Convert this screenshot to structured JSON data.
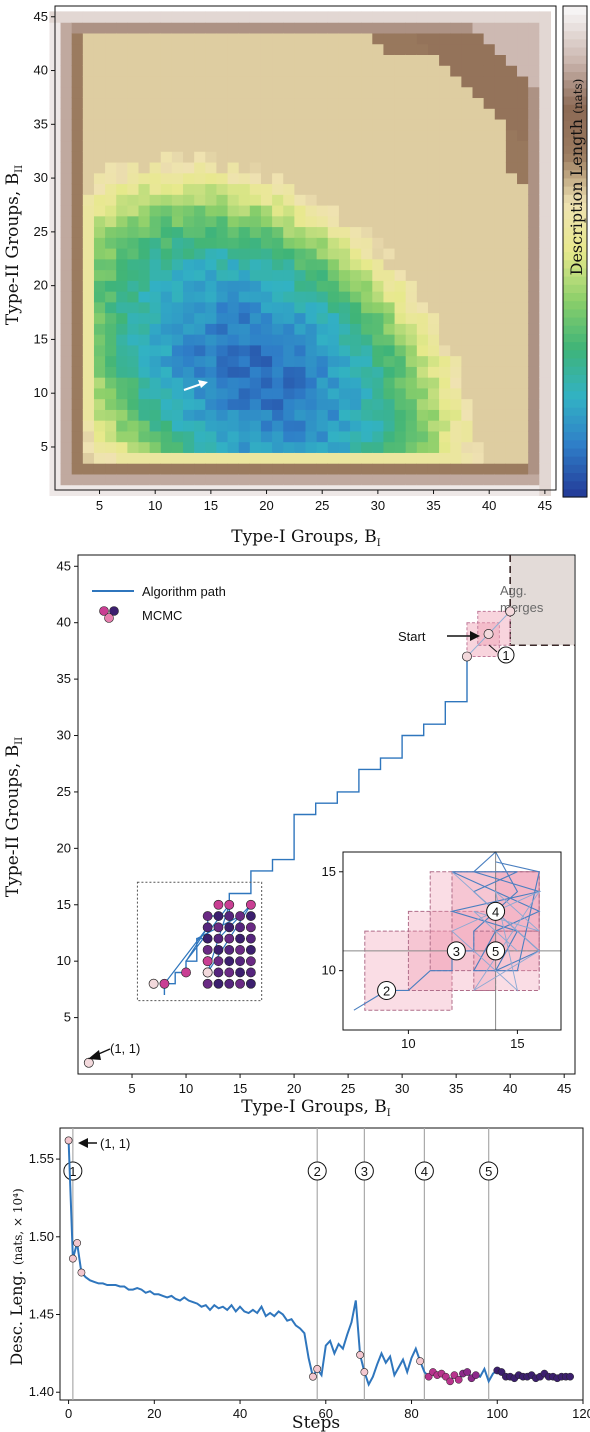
{
  "chart_data": [
    {
      "type": "heatmap",
      "xlabel": "Type-I Groups, B",
      "xlabel_sub": "I",
      "ylabel": "Type-II Groups, B",
      "ylabel_sub": "II",
      "xlim": [
        1,
        46
      ],
      "ylim": [
        1,
        46
      ],
      "xticks": [
        5,
        10,
        15,
        20,
        25,
        30,
        35,
        40,
        45
      ],
      "yticks": [
        5,
        10,
        15,
        20,
        25,
        30,
        35,
        40,
        45
      ],
      "colorbar_label": "Description Length",
      "colorbar_unit": "(nats)",
      "minimum_marker": {
        "x": 14,
        "y": 11
      },
      "colormap": [
        "#243e9a",
        "#2f7ec8",
        "#32b2c4",
        "#3fb478",
        "#8ccf6a",
        "#e7e98c",
        "#efe2b2",
        "#9b7b5f",
        "#8c6a55",
        "#cdb9b2",
        "#f6f4f4"
      ]
    },
    {
      "type": "line",
      "xlabel": "Type-I Groups, B",
      "xlabel_sub": "I",
      "ylabel": "Type-II Groups, B",
      "ylabel_sub": "II",
      "xlim": [
        0,
        46
      ],
      "ylim": [
        0,
        46
      ],
      "xticks": [
        5,
        10,
        15,
        20,
        25,
        30,
        35,
        40,
        45
      ],
      "yticks": [
        5,
        10,
        15,
        20,
        25,
        30,
        35,
        40,
        45
      ],
      "legend": {
        "path_label": "Algorithm path",
        "mcmc_label": "MCMC",
        "placement": "top-left"
      },
      "agg_region_label": "Agg.\nmerges",
      "agg_line1": "Agg.",
      "agg_line2": "merges",
      "start_label": "Start",
      "origin_label": "(1, 1)",
      "path": [
        [
          36,
          37
        ],
        [
          36,
          33
        ],
        [
          34,
          33
        ],
        [
          34,
          31
        ],
        [
          32,
          31
        ],
        [
          32,
          30
        ],
        [
          30,
          30
        ],
        [
          30,
          28
        ],
        [
          28,
          28
        ],
        [
          28,
          27
        ],
        [
          26,
          27
        ],
        [
          26,
          25
        ],
        [
          24,
          25
        ],
        [
          24,
          24
        ],
        [
          22,
          24
        ],
        [
          22,
          23
        ],
        [
          20,
          23
        ],
        [
          20,
          19
        ],
        [
          18,
          19
        ],
        [
          18,
          18
        ],
        [
          16,
          18
        ],
        [
          16,
          16
        ],
        [
          14,
          16
        ],
        [
          14,
          14
        ],
        [
          12,
          14
        ],
        [
          12,
          12
        ],
        [
          11,
          12
        ],
        [
          11,
          10
        ],
        [
          10,
          10
        ],
        [
          10,
          9
        ],
        [
          9,
          9
        ],
        [
          9,
          8
        ],
        [
          8,
          8
        ],
        [
          8,
          7
        ]
      ],
      "path_points": [
        [
          1,
          1
        ],
        [
          36,
          37
        ],
        [
          38,
          39
        ],
        [
          40,
          41
        ],
        [
          16,
          15
        ],
        [
          15,
          15
        ],
        [
          14,
          15
        ],
        [
          13,
          15
        ],
        [
          12,
          9
        ],
        [
          10,
          9
        ],
        [
          8,
          8
        ],
        [
          7,
          8
        ]
      ],
      "mcmc_grid": {
        "x_from": 12,
        "x_to": 16,
        "y_from": 8,
        "y_to": 14
      },
      "inset": {
        "xlim": [
          7,
          17
        ],
        "ylim": [
          7,
          16
        ],
        "xticks": [
          10,
          15
        ],
        "yticks": [
          10,
          15
        ],
        "ref_x": 14,
        "ref_y": 11
      },
      "step_markers": [
        "1",
        "2",
        "3",
        "4",
        "5"
      ]
    },
    {
      "type": "line",
      "xlabel": "Steps",
      "ylabel": "Desc. Leng.",
      "yunit": "(nats, × 10⁴)",
      "xlim": [
        -2,
        120
      ],
      "ylim": [
        1.395,
        1.57
      ],
      "xticks": [
        0,
        20,
        40,
        60,
        80,
        100,
        120
      ],
      "yticks": [
        1.4,
        1.45,
        1.5,
        1.55
      ],
      "ytick_labels": [
        "1.40",
        "1.45",
        "1.50",
        "1.55"
      ],
      "start_label": "(1, 1)",
      "vlines": [
        {
          "x": 1,
          "label": "1"
        },
        {
          "x": 58,
          "label": "2"
        },
        {
          "x": 69,
          "label": "3"
        },
        {
          "x": 83,
          "label": "4"
        },
        {
          "x": 98,
          "label": "5"
        }
      ],
      "x": [
        0,
        1,
        2,
        3,
        4,
        5,
        6,
        7,
        8,
        9,
        10,
        11,
        12,
        13,
        14,
        15,
        16,
        17,
        18,
        19,
        20,
        21,
        22,
        23,
        24,
        25,
        26,
        27,
        28,
        29,
        30,
        31,
        32,
        33,
        34,
        35,
        36,
        37,
        38,
        39,
        40,
        41,
        42,
        43,
        44,
        45,
        46,
        47,
        48,
        49,
        50,
        51,
        52,
        53,
        54,
        55,
        56,
        57,
        58,
        59,
        60,
        61,
        62,
        63,
        64,
        65,
        66,
        67,
        68,
        69,
        70,
        71,
        72,
        73,
        74,
        75,
        76,
        77,
        78,
        79,
        80,
        81,
        82,
        83,
        84,
        85,
        86,
        87,
        88,
        89,
        90,
        91,
        92,
        93,
        94,
        95,
        96,
        97,
        98,
        99,
        100,
        101,
        102,
        103,
        104,
        105,
        106,
        107,
        108,
        109,
        110,
        111,
        112,
        113,
        114,
        115,
        116,
        117
      ],
      "y": [
        1.562,
        1.486,
        1.496,
        1.477,
        1.474,
        1.472,
        1.471,
        1.47,
        1.47,
        1.469,
        1.469,
        1.469,
        1.468,
        1.468,
        1.466,
        1.466,
        1.467,
        1.466,
        1.464,
        1.465,
        1.463,
        1.463,
        1.462,
        1.461,
        1.462,
        1.46,
        1.459,
        1.461,
        1.459,
        1.458,
        1.457,
        1.455,
        1.456,
        1.453,
        1.456,
        1.454,
        1.455,
        1.453,
        1.456,
        1.452,
        1.455,
        1.452,
        1.451,
        1.453,
        1.451,
        1.455,
        1.449,
        1.451,
        1.449,
        1.452,
        1.45,
        1.446,
        1.447,
        1.443,
        1.441,
        1.438,
        1.422,
        1.41,
        1.415,
        1.411,
        1.43,
        1.433,
        1.425,
        1.431,
        1.428,
        1.437,
        1.445,
        1.459,
        1.424,
        1.413,
        1.405,
        1.41,
        1.418,
        1.425,
        1.419,
        1.423,
        1.411,
        1.416,
        1.421,
        1.413,
        1.422,
        1.428,
        1.42,
        1.413,
        1.41,
        1.413,
        1.411,
        1.412,
        1.41,
        1.407,
        1.411,
        1.408,
        1.412,
        1.413,
        1.409,
        1.411,
        1.41,
        1.415,
        1.407,
        1.412,
        1.414,
        1.413,
        1.41,
        1.41,
        1.409,
        1.411,
        1.41,
        1.41,
        1.411,
        1.409,
        1.41,
        1.412,
        1.41,
        1.41,
        1.409,
        1.41,
        1.41,
        1.41
      ]
    }
  ]
}
